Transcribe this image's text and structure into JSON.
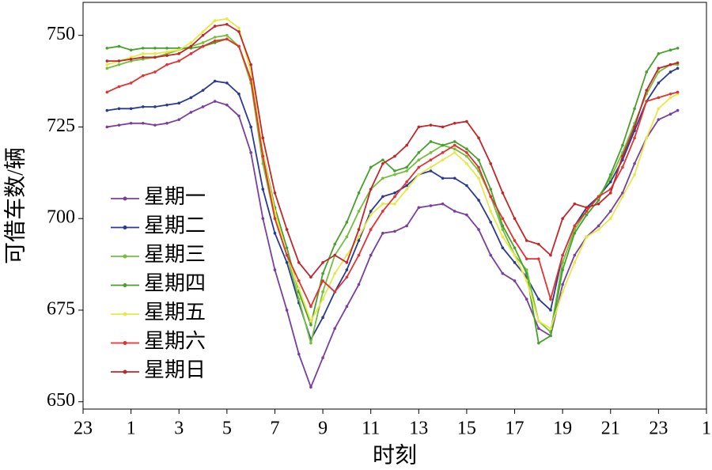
{
  "chart_data": {
    "type": "line",
    "y_label": "可借车数/辆",
    "x_label": "时刻",
    "xlim": [
      -1,
      25
    ],
    "ylim": [
      648,
      759
    ],
    "xticks": [
      {
        "value": -1,
        "label": "23"
      },
      1,
      3,
      5,
      7,
      9,
      11,
      13,
      15,
      17,
      19,
      21,
      23,
      {
        "value": 25,
        "label": "1"
      }
    ],
    "yticks": [
      650,
      675,
      700,
      725,
      750
    ],
    "legend": "left",
    "x": [
      0,
      0.5,
      1,
      1.5,
      2,
      2.5,
      3,
      3.5,
      4,
      4.5,
      5,
      5.5,
      6,
      6.5,
      7,
      7.5,
      8,
      8.5,
      9,
      9.5,
      10,
      10.5,
      11,
      11.5,
      12,
      12.5,
      13,
      13.5,
      14,
      14.5,
      15,
      15.5,
      16,
      16.5,
      17,
      17.5,
      18,
      18.5,
      19,
      19.5,
      20,
      20.5,
      21,
      21.5,
      22,
      22.5,
      23,
      23.5,
      23.8
    ],
    "series": [
      {
        "name": "星期一",
        "color": "#7a3f9d",
        "values": [
          725,
          725.5,
          726,
          726,
          725.5,
          726,
          727,
          729,
          730.5,
          732,
          731,
          728,
          718,
          700,
          686,
          675,
          663,
          654,
          662,
          670,
          676,
          682,
          690,
          696,
          696.5,
          698,
          703,
          703.5,
          704,
          702,
          701,
          697,
          690,
          685,
          683,
          678,
          670,
          668,
          682,
          690,
          695,
          698,
          702,
          707,
          715,
          722,
          727,
          728.5,
          729.5
        ]
      },
      {
        "name": "星期二",
        "color": "#2b3a8f",
        "values": [
          729.5,
          730,
          730,
          730.5,
          730.5,
          731,
          731.5,
          733,
          735,
          737.5,
          737,
          734,
          725,
          708,
          696,
          688,
          677,
          667,
          673,
          680,
          686,
          694,
          702,
          706,
          707,
          709,
          712,
          713,
          711,
          711,
          709,
          705,
          699,
          692,
          688,
          684,
          678,
          675,
          690,
          698,
          703,
          706,
          710,
          716,
          724,
          732,
          737,
          740,
          741
        ]
      },
      {
        "name": "星期三",
        "color": "#72bf3c",
        "values": [
          741,
          742,
          743,
          743.5,
          744,
          745,
          746,
          747,
          748,
          749.5,
          750,
          747,
          737,
          715,
          700,
          690,
          678,
          666,
          680,
          690,
          695,
          702,
          708,
          711,
          712,
          713,
          716,
          718,
          720,
          719,
          717,
          713,
          706,
          697,
          690,
          686,
          672,
          669,
          688,
          697,
          702,
          706,
          711,
          718,
          726,
          734,
          740,
          742,
          742
        ]
      },
      {
        "name": "星期四",
        "color": "#48a02c",
        "values": [
          746.5,
          747,
          746,
          746.5,
          746.5,
          746.5,
          746.5,
          746.5,
          747,
          748,
          749,
          747,
          738,
          718,
          703,
          692,
          680,
          671,
          685,
          693,
          699,
          707,
          714,
          716,
          713,
          714,
          718,
          721,
          720,
          721,
          719,
          716,
          708,
          698,
          692,
          685,
          666,
          668,
          686,
          696,
          701,
          705,
          712,
          720,
          730,
          740,
          745,
          746,
          746.5
        ]
      },
      {
        "name": "星期五",
        "color": "#e6e84a",
        "values": [
          742,
          743,
          744,
          745,
          745,
          745.5,
          746,
          748,
          751,
          754,
          754.5,
          752,
          740,
          718,
          702,
          690,
          681,
          672,
          678,
          685,
          690,
          695,
          701,
          704,
          704,
          708,
          712,
          714,
          716,
          718,
          715,
          711,
          702,
          695,
          690,
          683,
          672,
          670,
          680,
          688,
          695,
          697,
          700,
          706,
          712,
          722,
          730,
          733,
          734
        ]
      },
      {
        "name": "星期六",
        "color": "#e23232",
        "values": [
          734.5,
          736,
          737,
          739,
          740,
          742,
          743,
          745,
          747,
          748.5,
          749,
          747,
          738,
          717,
          700,
          690,
          683,
          676,
          683,
          680,
          684,
          690,
          697,
          702,
          706,
          710,
          714,
          716,
          718,
          720,
          718,
          714,
          706,
          700,
          694,
          689,
          689,
          678,
          690,
          698,
          702,
          706,
          708,
          714,
          722,
          732,
          733,
          734,
          734.5
        ]
      },
      {
        "name": "星期日",
        "color": "#c0272b",
        "values": [
          743,
          743,
          743.5,
          744,
          744,
          744.5,
          745,
          747,
          750,
          752.5,
          753,
          751,
          742,
          722,
          707,
          697,
          688,
          684,
          688,
          690,
          688,
          697,
          708,
          715,
          717,
          720,
          725,
          725.5,
          725,
          726,
          726.5,
          722,
          715,
          707,
          700,
          694,
          693,
          690,
          700,
          704,
          703,
          704,
          707,
          717,
          725,
          735,
          741,
          742,
          742.5
        ]
      }
    ]
  }
}
